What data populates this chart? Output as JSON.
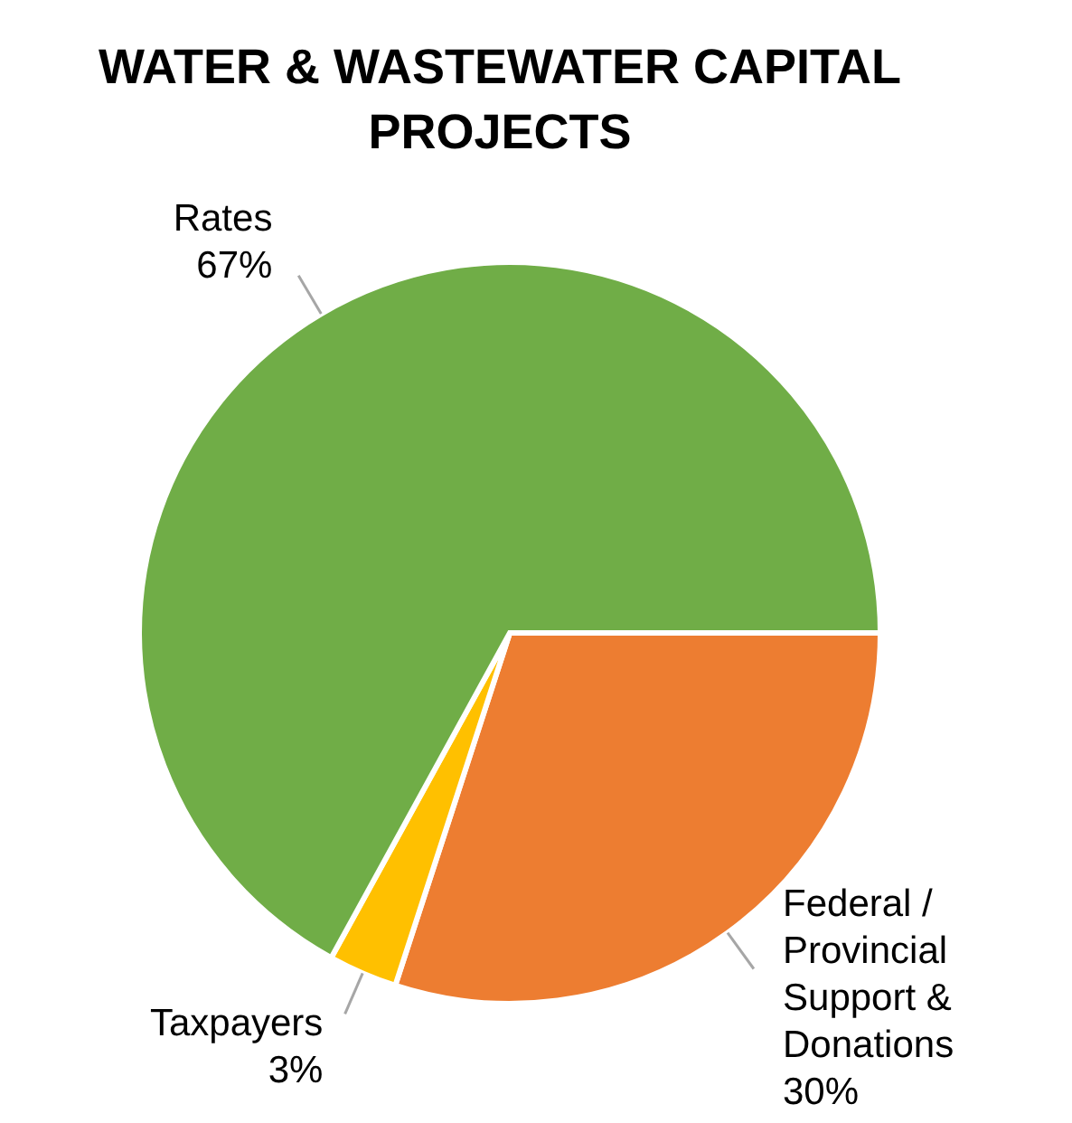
{
  "chart_data": {
    "type": "pie",
    "title": "WATER & WASTEWATER CAPITAL PROJECTS",
    "categories": [
      "Federal / Provincial Support & Donations",
      "Taxpayers",
      "Rates"
    ],
    "values": [
      30,
      3,
      67
    ],
    "colors": [
      "#ed7d31",
      "#ffc000",
      "#70ad47"
    ],
    "value_labels": [
      "30%",
      "3%",
      "67%"
    ],
    "legend": false
  }
}
